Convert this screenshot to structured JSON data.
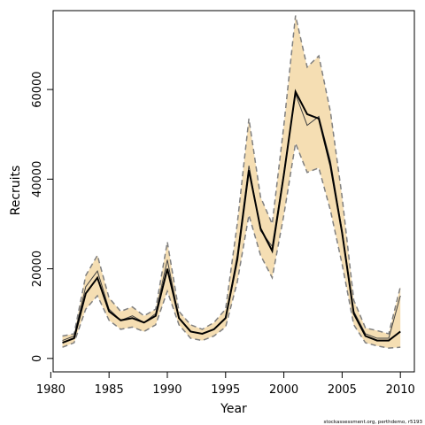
{
  "chart_data": {
    "type": "line",
    "xlabel": "Year",
    "ylabel": "Recruits",
    "xlim": [
      1980.2,
      2011.2
    ],
    "ylim": [
      -3000,
      77600
    ],
    "x_ticks": [
      1980,
      1985,
      1990,
      1995,
      2000,
      2005,
      2010
    ],
    "y_ticks": [
      0,
      20000,
      40000,
      60000
    ],
    "grid": false,
    "legend": "none",
    "x": [
      1981,
      1982,
      1983,
      1984,
      1985,
      1986,
      1987,
      1988,
      1989,
      1990,
      1991,
      1992,
      1993,
      1994,
      1995,
      1996,
      1997,
      1998,
      1999,
      2000,
      2001,
      2002,
      2003,
      2004,
      2005,
      2006,
      2007,
      2008,
      2009,
      2010
    ],
    "series": [
      {
        "role": "estimate",
        "values": [
          3500,
          4500,
          14500,
          18000,
          10500,
          8500,
          9000,
          8000,
          9500,
          20000,
          9000,
          6000,
          5500,
          6500,
          9000,
          22000,
          42000,
          29000,
          24000,
          41000,
          59500,
          54500,
          53500,
          43000,
          28000,
          10000,
          5000,
          4000,
          4000,
          6000
        ]
      },
      {
        "role": "interval-upper",
        "values": [
          5000,
          5500,
          18500,
          23000,
          13500,
          10500,
          11500,
          9500,
          11000,
          26000,
          10500,
          7500,
          6500,
          8000,
          11000,
          30000,
          53500,
          36000,
          30000,
          52000,
          76500,
          65000,
          67500,
          55000,
          36000,
          13000,
          6800,
          6200,
          5500,
          16000
        ]
      },
      {
        "role": "interval-lower",
        "values": [
          2500,
          3500,
          11000,
          14000,
          8500,
          6500,
          7000,
          6000,
          7500,
          15000,
          7500,
          4500,
          4000,
          5000,
          7000,
          17000,
          32000,
          23000,
          18000,
          32000,
          48000,
          41500,
          42500,
          33000,
          21000,
          7500,
          3500,
          2800,
          2300,
          2500
        ]
      },
      {
        "role": "retrospective-outline",
        "values": [
          4000,
          5000,
          16000,
          19500,
          11000,
          8500,
          9500,
          8000,
          10000,
          22000,
          9000,
          6000,
          5500,
          6500,
          9000,
          23000,
          43000,
          28500,
          25000,
          41500,
          59000,
          52000,
          54000,
          44000,
          28500,
          10500,
          5500,
          4500,
          4500,
          14000
        ]
      }
    ],
    "colors": {
      "band_fill": "#f5deb3",
      "estimate_line": "#000000",
      "interval_line": "#808080",
      "outline_line": "#404040"
    }
  },
  "footer": {
    "credit": "stockassessment.org, perthdemo, r5193"
  }
}
